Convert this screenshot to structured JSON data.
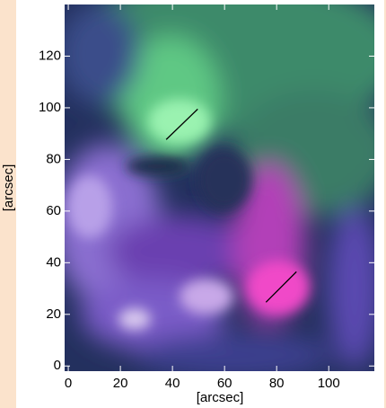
{
  "chart_data": {
    "type": "image",
    "xlabel": "[arcsec]",
    "ylabel": "[arcsec]",
    "xlim": [
      -1.4,
      117.5
    ],
    "ylim": [
      -2,
      140
    ],
    "xticks": [
      0,
      20,
      40,
      60,
      80,
      100
    ],
    "yticks": [
      0,
      20,
      40,
      60,
      80,
      100,
      120
    ],
    "lines": [
      {
        "x": [
          37.6,
          49.7
        ],
        "y": [
          87.7,
          99.5
        ],
        "color": "#000000"
      },
      {
        "x": [
          75.9,
          87.6
        ],
        "y": [
          24.7,
          36.5
        ],
        "color": "#000000"
      }
    ]
  }
}
